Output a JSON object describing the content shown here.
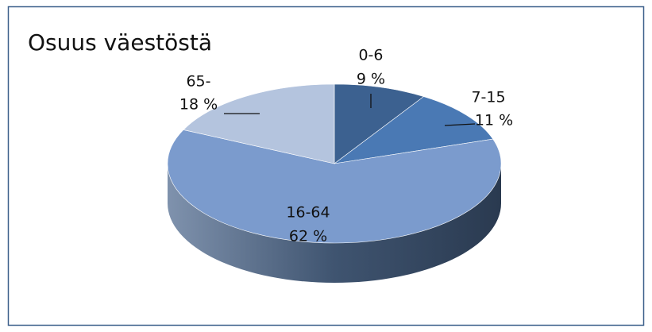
{
  "chart_data": {
    "type": "pie",
    "title": "Osuus väestöstä",
    "categories": [
      "0-6",
      "7-15",
      "16-64",
      "65-"
    ],
    "values": [
      9,
      11,
      62,
      18
    ],
    "value_labels": [
      "9 %",
      "11 %",
      "62 %",
      "18 %"
    ],
    "colors": [
      "#3c6190",
      "#4a79b4",
      "#7b9bcd",
      "#b4c4de"
    ]
  }
}
